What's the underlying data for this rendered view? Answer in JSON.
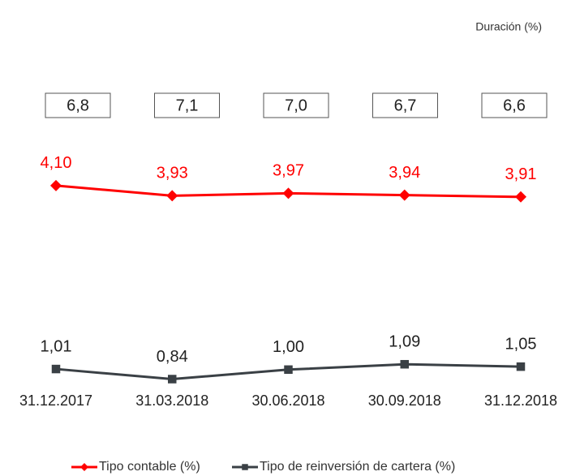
{
  "chart_data": {
    "type": "line",
    "annotation": "Duración (%)",
    "categories": [
      "31.12.2017",
      "31.03.2018",
      "30.06.2018",
      "30.09.2018",
      "31.12.2018"
    ],
    "durations": {
      "values": [
        6.8,
        7.1,
        7.0,
        6.7,
        6.6
      ],
      "value_labels": [
        "6,8",
        "7,1",
        "7,0",
        "6,7",
        "6,6"
      ]
    },
    "series": [
      {
        "name": "Tipo contable (%)",
        "color": "#ff0000",
        "marker": "diamond",
        "values": [
          4.1,
          3.93,
          3.97,
          3.94,
          3.91
        ],
        "value_labels": [
          "4,10",
          "3,93",
          "3,97",
          "3,94",
          "3,91"
        ]
      },
      {
        "name": "Tipo de reinversión de cartera (%)",
        "color": "#3a4045",
        "marker": "square",
        "values": [
          1.01,
          0.84,
          1.0,
          1.09,
          1.05
        ],
        "value_labels": [
          "1,01",
          "0,84",
          "1,00",
          "1,09",
          "1,05"
        ]
      }
    ],
    "ylim": [
      0,
      5
    ]
  }
}
